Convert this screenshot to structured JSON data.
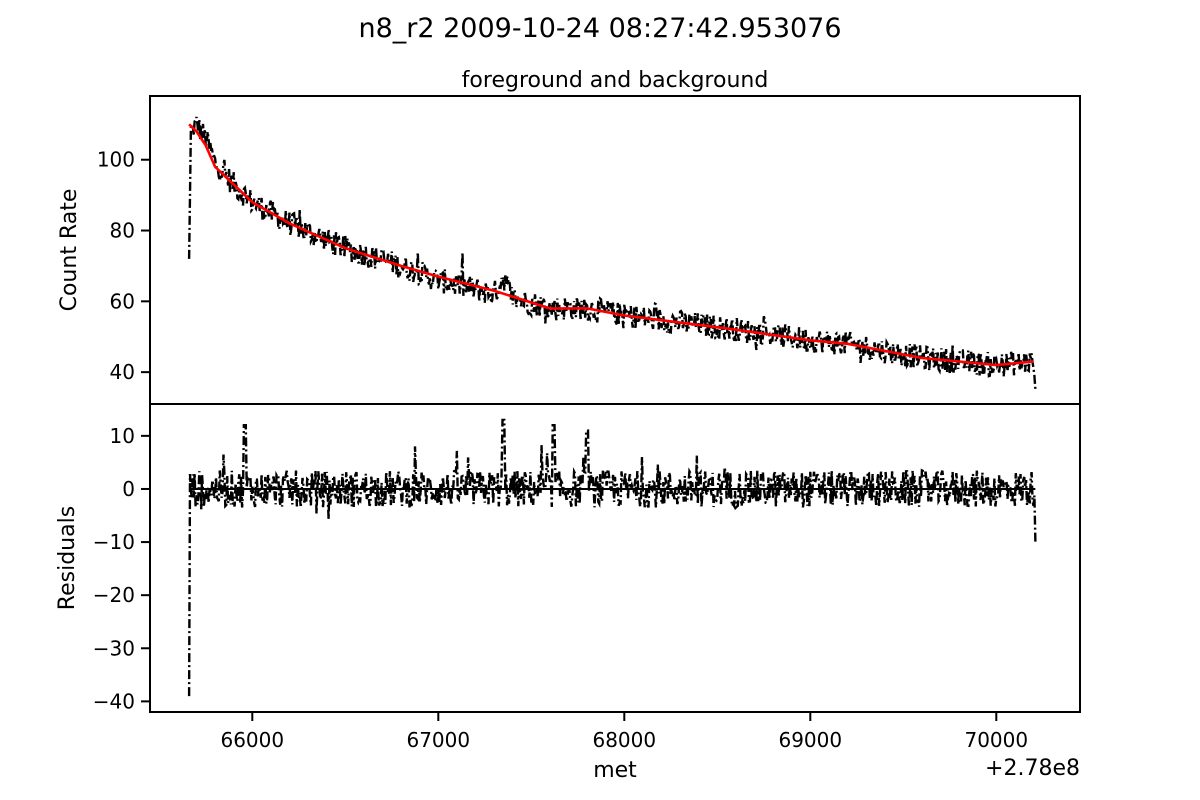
{
  "figure": {
    "title": "n8_r2 2009-10-24 08:27:42.953076",
    "offset_label": "+2.78e8"
  },
  "colors": {
    "data": "#000000",
    "model": "#ff0000",
    "axes": "#000000"
  },
  "chart_data": [
    {
      "type": "line",
      "panel": "top",
      "title": "foreground and background",
      "xlabel": "",
      "ylabel": "Count Rate",
      "xlim": [
        65450,
        70450
      ],
      "ylim": [
        31,
        118
      ],
      "yticks": [
        40,
        60,
        80,
        100
      ],
      "ytick_labels": [
        "40",
        "60",
        "80",
        "100"
      ],
      "grid": false,
      "series": [
        {
          "style": "dash-dot",
          "x_range": [
            65660,
            70210
          ],
          "x_step": 5,
          "envelope_knots": [
            [
              65660,
              72
            ],
            [
              65670,
              108
            ],
            [
              65700,
              110
            ],
            [
              65750,
              106
            ],
            [
              65800,
              99
            ],
            [
              65900,
              93
            ],
            [
              66000,
              88
            ],
            [
              66200,
              82
            ],
            [
              66500,
              75
            ],
            [
              66800,
              70
            ],
            [
              67000,
              66
            ],
            [
              67300,
              62
            ],
            [
              67350,
              67
            ],
            [
              67400,
              61
            ],
            [
              67600,
              58
            ],
            [
              67800,
              58
            ],
            [
              68000,
              56
            ],
            [
              68300,
              54
            ],
            [
              68600,
              52
            ],
            [
              69000,
              49
            ],
            [
              69200,
              48
            ],
            [
              69400,
              46
            ],
            [
              69600,
              44
            ],
            [
              69800,
              43
            ],
            [
              70000,
              42
            ],
            [
              70200,
              43
            ],
            [
              70210,
              35
            ]
          ],
          "noise_amplitude": 3.5
        },
        {
          "style": "solid",
          "color": "#ff0000",
          "x": [
            65660,
            65700,
            65750,
            65800,
            65900,
            66000,
            66200,
            66500,
            66800,
            67000,
            67300,
            67600,
            67800,
            68000,
            68300,
            68600,
            69000,
            69200,
            69400,
            69600,
            69800,
            70000,
            70200
          ],
          "y": [
            110,
            108,
            104,
            98,
            93,
            88,
            82,
            75,
            70,
            67,
            63,
            58,
            58,
            56,
            54,
            52,
            49,
            48,
            46,
            44,
            43,
            42,
            43
          ]
        }
      ]
    },
    {
      "type": "line",
      "panel": "bottom",
      "title": "",
      "xlabel": "met",
      "ylabel": "Residuals",
      "xlim": [
        65450,
        70450
      ],
      "ylim": [
        -42,
        16
      ],
      "xticks": [
        66000,
        67000,
        68000,
        69000,
        70000
      ],
      "xtick_labels": [
        "66000",
        "67000",
        "68000",
        "69000",
        "70000"
      ],
      "yticks": [
        -40,
        -30,
        -20,
        -10,
        0,
        10
      ],
      "ytick_labels": [
        "−40",
        "−30",
        "−20",
        "−10",
        "0",
        "10"
      ],
      "grid": false,
      "series": [
        {
          "style": "dash-dot",
          "x_range": [
            65660,
            70210
          ],
          "x_step": 5,
          "start_dip": -39,
          "end_dip": -10,
          "spikes": [
            [
              65960,
              12
            ],
            [
              67350,
              13
            ],
            [
              67620,
              12
            ],
            [
              67800,
              11
            ]
          ],
          "noise_amplitude": 3.5
        },
        {
          "style": "solid",
          "x": [
            65660,
            70210
          ],
          "y": [
            0,
            0
          ]
        }
      ]
    }
  ]
}
